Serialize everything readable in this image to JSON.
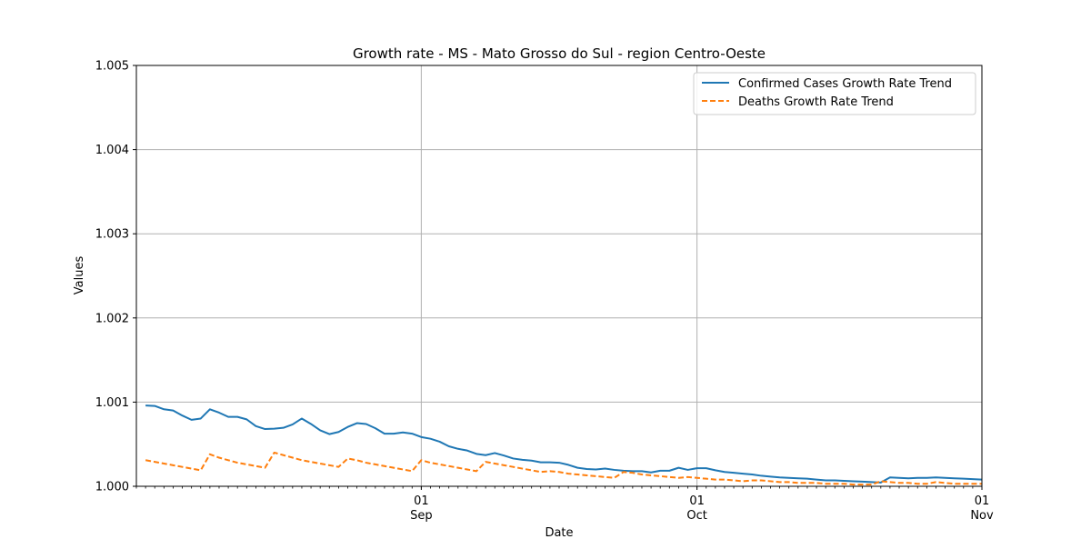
{
  "chart_data": {
    "type": "line",
    "title": "Growth rate - MS - Mato Grosso do Sul - region Centro-Oeste",
    "xlabel": "Date",
    "ylabel": "Values",
    "ylim": [
      1.0,
      1.005
    ],
    "xlim": [
      "2020-08-01",
      "2020-11-01"
    ],
    "y_ticks": [
      "1.000",
      "1.001",
      "1.002",
      "1.003",
      "1.004",
      "1.005"
    ],
    "x_ticks": [
      {
        "date": "2020-09-01",
        "day": "01",
        "month": "Sep"
      },
      {
        "date": "2020-10-01",
        "day": "01",
        "month": "Oct"
      },
      {
        "date": "2020-11-01",
        "day": "01",
        "month": "Nov"
      }
    ],
    "grid": true,
    "legend_position": "top-right",
    "series": [
      {
        "name": "Confirmed Cases Growth Rate Trend",
        "color": "#1f77b4",
        "style": "solid",
        "x": [
          "2020-08-02",
          "2020-08-03",
          "2020-08-04",
          "2020-08-05",
          "2020-08-06",
          "2020-08-07",
          "2020-08-08",
          "2020-08-09",
          "2020-08-10",
          "2020-08-11",
          "2020-08-12",
          "2020-08-13",
          "2020-08-14",
          "2020-08-15",
          "2020-08-16",
          "2020-08-17",
          "2020-08-18",
          "2020-08-19",
          "2020-08-20",
          "2020-08-21",
          "2020-08-22",
          "2020-08-23",
          "2020-08-24",
          "2020-08-25",
          "2020-08-26",
          "2020-08-27",
          "2020-08-28",
          "2020-08-29",
          "2020-08-30",
          "2020-08-31",
          "2020-09-01",
          "2020-09-02",
          "2020-09-03",
          "2020-09-04",
          "2020-09-05",
          "2020-09-06",
          "2020-09-07",
          "2020-09-08",
          "2020-09-09",
          "2020-09-10",
          "2020-09-11",
          "2020-09-12",
          "2020-09-13",
          "2020-09-14",
          "2020-09-15",
          "2020-09-16",
          "2020-09-17",
          "2020-09-18",
          "2020-09-19",
          "2020-09-20",
          "2020-09-21",
          "2020-09-22",
          "2020-09-23",
          "2020-09-24",
          "2020-09-25",
          "2020-09-26",
          "2020-09-27",
          "2020-09-28",
          "2020-09-29",
          "2020-09-30",
          "2020-10-01",
          "2020-10-02",
          "2020-10-03",
          "2020-10-04",
          "2020-10-05",
          "2020-10-06",
          "2020-10-07",
          "2020-10-08",
          "2020-10-09",
          "2020-10-10",
          "2020-10-11",
          "2020-10-12",
          "2020-10-13",
          "2020-10-14",
          "2020-10-15",
          "2020-10-16",
          "2020-10-17",
          "2020-10-18",
          "2020-10-19",
          "2020-10-20",
          "2020-10-21",
          "2020-10-22",
          "2020-10-23",
          "2020-10-24",
          "2020-10-25",
          "2020-10-26",
          "2020-10-27",
          "2020-10-28",
          "2020-10-29",
          "2020-10-30",
          "2020-10-31",
          "2020-11-01"
        ],
        "y": [
          1.00096,
          1.000955,
          1.000915,
          1.0009,
          1.00084,
          1.00079,
          1.000805,
          1.000915,
          1.000875,
          1.000825,
          1.000825,
          1.000795,
          1.000715,
          1.00068,
          1.000685,
          1.000695,
          1.000735,
          1.000805,
          1.00074,
          1.000665,
          1.00062,
          1.000645,
          1.000705,
          1.00075,
          1.00074,
          1.00069,
          1.000625,
          1.000625,
          1.00064,
          1.000625,
          1.000585,
          1.000565,
          1.00053,
          1.000475,
          1.000445,
          1.000425,
          1.000385,
          1.00037,
          1.000395,
          1.000365,
          1.00033,
          1.000315,
          1.000305,
          1.000285,
          1.000285,
          1.00028,
          1.000255,
          1.00022,
          1.000205,
          1.0002,
          1.00021,
          1.000195,
          1.000185,
          1.00018,
          1.00018,
          1.000165,
          1.000185,
          1.000185,
          1.00022,
          1.000195,
          1.000215,
          1.000215,
          1.00019,
          1.00017,
          1.00016,
          1.00015,
          1.00014,
          1.000125,
          1.000115,
          1.000105,
          1.0001,
          1.000095,
          1.00009,
          1.00008,
          1.00007,
          1.00007,
          1.000065,
          1.00006,
          1.000055,
          1.00005,
          1.000045,
          1.000105,
          1.0001,
          1.000095,
          1.0001,
          1.0001,
          1.000105,
          1.0001,
          1.000095,
          1.00009,
          1.000085,
          1.00008
        ]
      },
      {
        "name": "Deaths Growth Rate Trend",
        "color": "#ff7f0e",
        "style": "dashed",
        "x": [
          "2020-08-02",
          "2020-08-03",
          "2020-08-04",
          "2020-08-05",
          "2020-08-06",
          "2020-08-07",
          "2020-08-08",
          "2020-08-09",
          "2020-08-10",
          "2020-08-11",
          "2020-08-12",
          "2020-08-13",
          "2020-08-14",
          "2020-08-15",
          "2020-08-16",
          "2020-08-17",
          "2020-08-18",
          "2020-08-19",
          "2020-08-20",
          "2020-08-21",
          "2020-08-22",
          "2020-08-23",
          "2020-08-24",
          "2020-08-25",
          "2020-08-26",
          "2020-08-27",
          "2020-08-28",
          "2020-08-29",
          "2020-08-30",
          "2020-08-31",
          "2020-09-01",
          "2020-09-02",
          "2020-09-03",
          "2020-09-04",
          "2020-09-05",
          "2020-09-06",
          "2020-09-07",
          "2020-09-08",
          "2020-09-09",
          "2020-09-10",
          "2020-09-11",
          "2020-09-12",
          "2020-09-13",
          "2020-09-14",
          "2020-09-15",
          "2020-09-16",
          "2020-09-17",
          "2020-09-18",
          "2020-09-19",
          "2020-09-20",
          "2020-09-21",
          "2020-09-22",
          "2020-09-23",
          "2020-09-24",
          "2020-09-25",
          "2020-09-26",
          "2020-09-27",
          "2020-09-28",
          "2020-09-29",
          "2020-09-30",
          "2020-10-01",
          "2020-10-02",
          "2020-10-03",
          "2020-10-04",
          "2020-10-05",
          "2020-10-06",
          "2020-10-07",
          "2020-10-08",
          "2020-10-09",
          "2020-10-10",
          "2020-10-11",
          "2020-10-12",
          "2020-10-13",
          "2020-10-14",
          "2020-10-15",
          "2020-10-16",
          "2020-10-17",
          "2020-10-18",
          "2020-10-19",
          "2020-10-20",
          "2020-10-21",
          "2020-10-22",
          "2020-10-23",
          "2020-10-24",
          "2020-10-25",
          "2020-10-26",
          "2020-10-27",
          "2020-10-28",
          "2020-10-29",
          "2020-10-30",
          "2020-10-31",
          "2020-11-01"
        ],
        "y": [
          1.00031,
          1.00029,
          1.00027,
          1.00025,
          1.00023,
          1.00021,
          1.00019,
          1.00038,
          1.00034,
          1.00031,
          1.00028,
          1.00026,
          1.00024,
          1.00022,
          1.0004,
          1.00037,
          1.00034,
          1.00031,
          1.00029,
          1.00027,
          1.00025,
          1.00023,
          1.00033,
          1.00031,
          1.00028,
          1.00026,
          1.00024,
          1.00022,
          1.0002,
          1.00018,
          1.00031,
          1.00028,
          1.00026,
          1.00024,
          1.00022,
          1.0002,
          1.00018,
          1.00029,
          1.00027,
          1.00025,
          1.00023,
          1.00021,
          1.00019,
          1.00017,
          1.00018,
          1.00017,
          1.00015,
          1.00014,
          1.00013,
          1.00012,
          1.00011,
          1.0001,
          1.00017,
          1.00016,
          1.00014,
          1.00013,
          1.00012,
          1.00011,
          1.0001,
          1.00011,
          1.0001,
          1.00009,
          1.00008,
          1.00008,
          1.00007,
          1.00006,
          1.00007,
          1.00007,
          1.00006,
          1.00005,
          1.00005,
          1.00004,
          1.00004,
          1.00004,
          1.00003,
          1.00003,
          1.00003,
          1.00002,
          1.00002,
          1.00002,
          1.00006,
          1.00005,
          1.00004,
          1.00004,
          1.00003,
          1.00003,
          1.00005,
          1.00004,
          1.00003,
          1.00003,
          1.00003,
          1.00003
        ]
      }
    ]
  }
}
